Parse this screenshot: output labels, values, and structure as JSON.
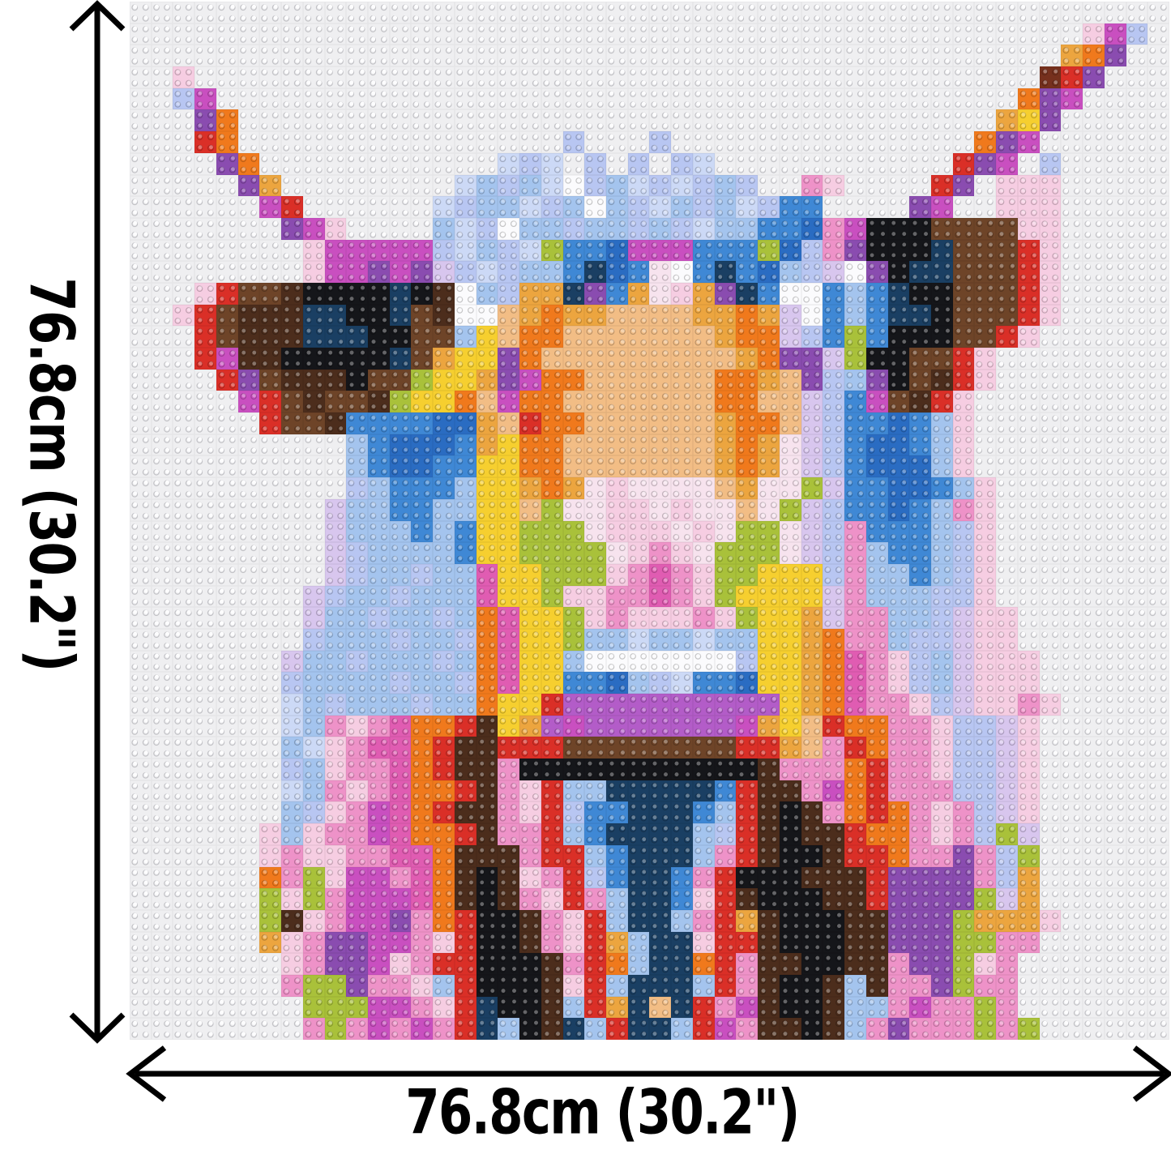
{
  "dimension_labels": {
    "left": "76.8cm (30.2\")",
    "bottom": "76.8cm (30.2\")"
  },
  "arrows": {
    "color": "#000000"
  },
  "mosaic": {
    "grid": 48,
    "palette": {
      "_": "#efeff1",
      "W": "#fbfbfd",
      "w": "#f7e3ee",
      "L": "#d8c6ee",
      "v": "#b8c6f2",
      "c": "#ccd9f6",
      "b": "#a4c4ee",
      "B": "#3f88d5",
      "E": "#2a6cc2",
      "N": "#1a3f63",
      "K": "#15161a",
      "D": "#4c2d1c",
      "M": "#6e4428",
      "m": "#76301d",
      "R": "#da2f27",
      "O": "#f0791c",
      "t": "#eca53f",
      "h": "#f2bd85",
      "Y": "#f6cf2f",
      "G": "#a9c13a",
      "P": "#ee92c8",
      "p": "#f6cde2",
      "F": "#e05cb2",
      "A": "#c94fc0",
      "U": "#8a4cb0",
      "u": "#b35cc8"
    },
    "rows": [
      "________________________________________________",
      "____________________________________________pAv_",
      "___________________________________________tOU__",
      "__p_______________________________________mRU___",
      "__vA_____________________________________OUA____",
      "___UO___________________________________tYU_____",
      "___RO_______________v___v______________OUA______",
      "____UO___________cvc_v_v_vc___________RUA_v_____",
      "_____Ut________cbvbcWvbcvcvbv__Pp____RU_ppp_____",
      "______AR______cvbbcvbWbvcbvbcvBB____UA__ppp_____",
      "_______UAp____bcvWbbvbbvbvcbbBBEPAKKKMMMMpp_____",
      "________pAAAAAvcbvcGBBEAAABBBGEvPUKKKNMMMRp_____",
      "________pAAUAULvcvbbBNEBwWBNBEbvLWUKNNMMMRp_____",
      "___pRMMDKKKKNKDWbvttNUBtwptUNBWWBbBNKKMMMRp_____",
      "__pRMDDDNNKKNMDWWhtOtthhhhttOtLWBbBNNKMMMRp_____",
      "___RMDDDNNNKKMMbYhOOhhhhhhhtOOLvBGBKKKMMRp______",
      "___RADDKKKKKNMtYYUOhhhhhhhhhtOUULGKKMMRp________",
      "____RUMDDDKMMGYYtUAOOhhhhhhOOthUvbUKMDRp________",
      "_____ARMDMMDGYYOhAOOhhhhhhhOOhhLvBAMDRp_________",
      "______RMMDBBBBEEthROOhhhhhhtOOhLvBBEBbp_________",
      "__________bBEEEBtYOOhhhhhhhtOtwLvBEEBbp_________",
      "__________bBEEBBYYOOhhhhhhhtOtwLvBEEEbp_________",
      "__________vbBBBbYYtOtwpwwwwhtwwGLBBEEBbp________",
      "_________LbbBBbbYYhGwwppwpwwhwGLvBBEBbPp________",
      "_________LbbbBbBYYGGGwpppwpwGGwLvPBBBbvp________",
      "_________LvbbbbBYYGGGGwpPpwGGGwLvPbBBbvp________",
      "_________LvbbvbbFYYGGGpPFPpGGYYYvPbbBbvp________",
      "________LvbbvbbbFYYGppPPFPpGYYYYLPbbbvvp________",
      "________LbbvbbvbOFYYGpPpppPpGYYtLPPbbvLpp_______",
      "________vbbbvbbvOFYYGbbcbbcbbYYtOPPbvvLpp_______",
      "_______LbbvbbbvbOFYYbWWWWWWWvYYtOFPpvbLppp______",
      "_______vbbbbvbbvOFYYBBEbvcBBEYYtOFPpvbLppp______",
      "_______cbvbbbvbbOYYRuuuuuuuuuuYtOFPPpvLppPp_____",
      "_______cbPpPFOORDYtuAuuuuuuuAtYhROOPPpvvLp______",
      "_______bcpPFFORDDRRRMMMMMMMMRRthPROPPpvvLp______",
      "_______vbpPPFORDDPKKKKKKKKKKKDPPPORPPpvvLp______",
      "_______cbPpPFOORDPpRbbNNNNNBRDDPAORPPPvvLp______",
      "_______bvpPAFORDDPpRvBBNNNBbRDKDPOROPpPvLp______",
      "______pbpPPAFOORDPPRbBNNNNbvRDKDDROOPpPvGL______",
      "______pPppPPFFODDDPRRbBNNNbPRDKKDRROPPUPvG______",
      "______OPGpAAPFODKDpPRvBNNBPRKKKDDDRUUUUPvt______",
      "______GpGPAAAFODKDPpRPbNNBpRDKKKDDRUUUUGLt______",
      "______GDpPAAUPORKKDPpRbNNbPRtDKKKDDUUUGtttp_____",
      "______tpPUUAAPpRKKDPpRtbNNpRRDKKKDDUUUGGPP______",
      "_______pPUUApPRRKKKDPRObNNORPDDKKDDPUUGpP_______",
      "_______PGGUPPpbRKKKDpRbNNNbRPDKKDbDPPUGPP_______",
      "________GGGAAPpRNKKDbRtNhNRPADKKDbbPAPPGP_______",
      "________PGPAPAPRNbKDNbRNNbRAPDDKDbPUPPPGPG______"
    ]
  }
}
